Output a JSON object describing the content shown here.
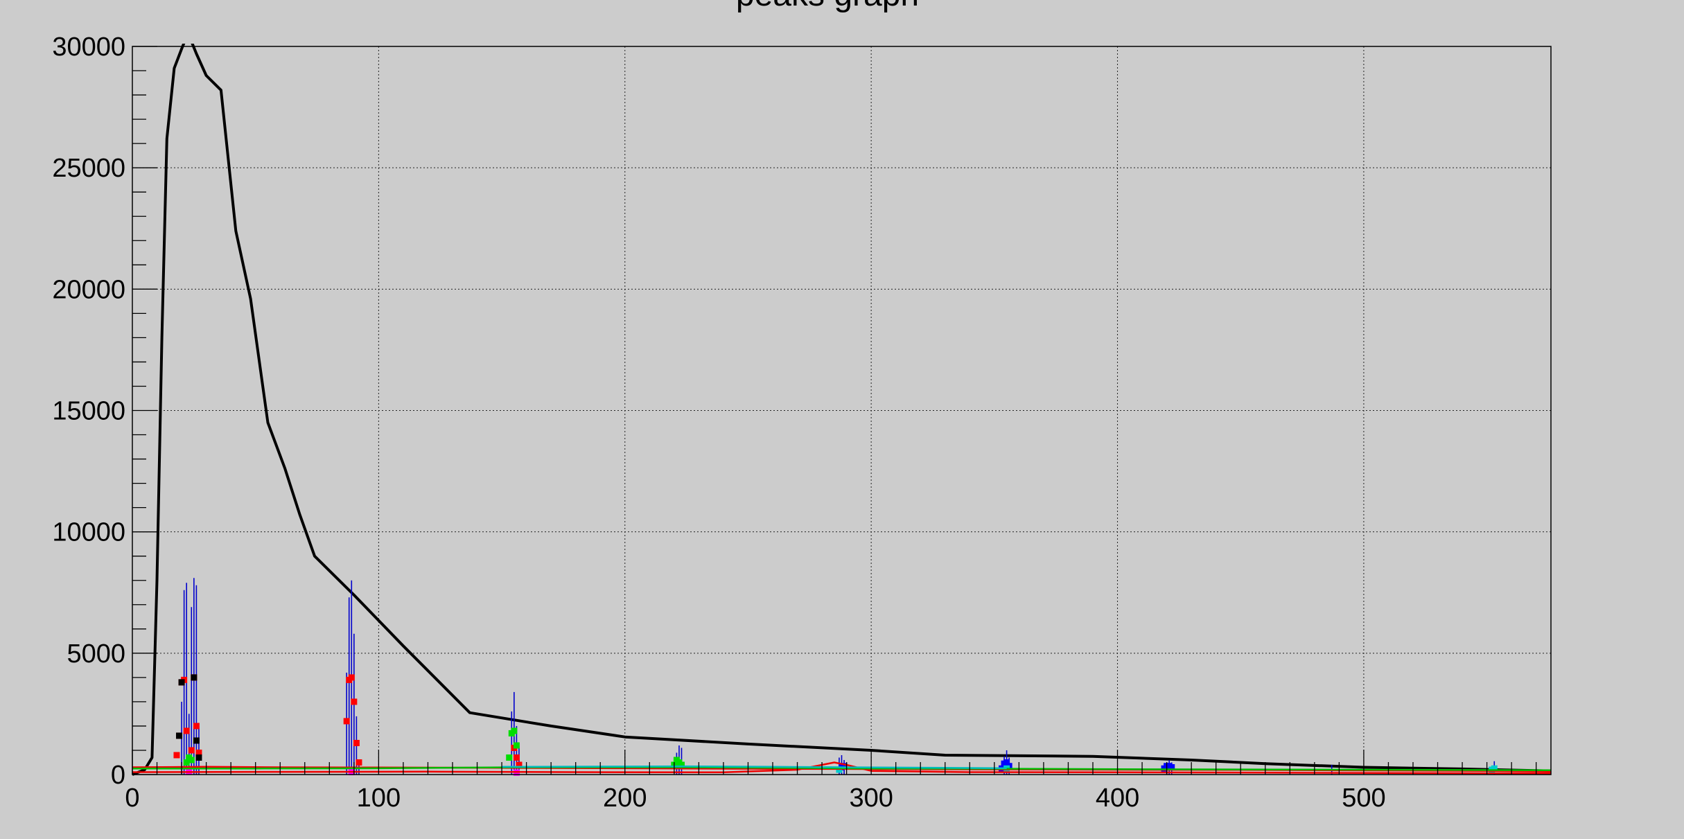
{
  "chart_data": {
    "type": "line",
    "title": "peaks graph",
    "xlabel": "",
    "ylabel": "",
    "xlim": [
      0,
      576
    ],
    "ylim": [
      0,
      30000
    ],
    "x_ticks": [
      0,
      100,
      200,
      300,
      400,
      500
    ],
    "y_ticks": [
      0,
      5000,
      10000,
      15000,
      20000,
      25000,
      30000
    ],
    "grid": true,
    "series": [
      {
        "color": "#000000",
        "style": "line",
        "x": [
          0,
          5,
          8,
          10,
          12,
          14,
          17,
          20,
          22,
          24,
          26,
          30,
          36,
          42,
          48,
          55,
          62,
          68,
          74,
          90,
          110,
          137,
          170,
          200,
          250,
          300,
          330,
          390,
          430,
          460,
          500,
          540,
          576
        ],
        "y": [
          0,
          200,
          700,
          8000,
          18000,
          26200,
          29100,
          29900,
          30400,
          30200,
          29700,
          28800,
          28200,
          22400,
          19600,
          14500,
          12600,
          10700,
          9000,
          7400,
          5300,
          2550,
          2000,
          1550,
          1260,
          1000,
          800,
          750,
          600,
          450,
          300,
          230,
          150
        ]
      },
      {
        "color": "#0000cc",
        "style": "spikes",
        "x": [
          20,
          21,
          22,
          23,
          24,
          25,
          26,
          27,
          87,
          88,
          89,
          90,
          91,
          92,
          154,
          155,
          156,
          157,
          221,
          222,
          223,
          287,
          288,
          289,
          354,
          355,
          356,
          420,
          421,
          422,
          487,
          553
        ],
        "y": [
          3000,
          7600,
          7900,
          2500,
          6900,
          8100,
          7800,
          2000,
          4200,
          7300,
          8000,
          5800,
          2400,
          600,
          2600,
          3400,
          2000,
          1200,
          900,
          1200,
          1100,
          700,
          800,
          600,
          750,
          1000,
          700,
          500,
          600,
          500,
          400,
          550
        ]
      },
      {
        "color": "#ff0000",
        "style": "markers",
        "x": [
          18,
          19,
          20,
          21,
          22,
          24,
          25,
          26,
          27,
          87,
          88,
          89,
          90,
          91,
          92,
          155,
          156,
          157
        ],
        "y": [
          800,
          1600,
          3800,
          3900,
          1800,
          1000,
          4000,
          2000,
          900,
          2200,
          3900,
          4000,
          3000,
          1300,
          500,
          1100,
          700,
          400
        ]
      },
      {
        "color": "#000000",
        "style": "markers",
        "x": [
          19,
          20,
          25,
          26,
          27
        ],
        "y": [
          1600,
          3800,
          4000,
          1400,
          700
        ]
      },
      {
        "color": "#00dd00",
        "style": "markers",
        "x": [
          22,
          23,
          24,
          153,
          154,
          155,
          156,
          220,
          221,
          222,
          223
        ],
        "y": [
          500,
          700,
          600,
          700,
          1700,
          1800,
          1200,
          400,
          600,
          500,
          400
        ]
      },
      {
        "color": "#0000ff",
        "style": "markers",
        "x": [
          288,
          289,
          353,
          354,
          355,
          356,
          419,
          420,
          421,
          422
        ],
        "y": [
          300,
          350,
          250,
          450,
          500,
          350,
          250,
          350,
          350,
          300
        ]
      },
      {
        "color": "#00cccc",
        "style": "markers",
        "x": [
          287,
          355,
          552,
          553
        ],
        "y": [
          200,
          250,
          200,
          250
        ]
      },
      {
        "color": "#ff00ff",
        "style": "markers",
        "x": [
          23,
          89,
          156
        ],
        "y": [
          120,
          100,
          80
        ]
      },
      {
        "color": "#ee0000",
        "style": "line",
        "x": [
          0,
          30,
          60,
          100,
          150,
          200,
          250,
          290,
          320,
          360,
          400,
          450,
          500,
          550,
          576
        ],
        "y": [
          300,
          320,
          300,
          290,
          280,
          260,
          240,
          230,
          220,
          210,
          200,
          190,
          170,
          150,
          120
        ]
      },
      {
        "color": "#ee0000",
        "style": "line",
        "x": [
          0,
          60,
          120,
          180,
          240,
          270,
          280,
          285,
          290,
          300,
          340,
          400,
          460,
          520,
          576
        ],
        "y": [
          100,
          110,
          120,
          100,
          90,
          200,
          400,
          500,
          400,
          150,
          100,
          90,
          80,
          60,
          50
        ]
      },
      {
        "color": "#00bb00",
        "style": "line",
        "x": [
          0,
          50,
          100,
          155,
          200,
          223,
          260,
          300,
          355,
          400,
          500,
          576
        ],
        "y": [
          250,
          250,
          260,
          300,
          300,
          300,
          280,
          250,
          240,
          220,
          200,
          180
        ]
      },
      {
        "color": "#00bbbb",
        "style": "line",
        "x": [
          150,
          200,
          223,
          260,
          290,
          330,
          355
        ],
        "y": [
          320,
          330,
          340,
          320,
          300,
          280,
          260
        ]
      }
    ]
  }
}
